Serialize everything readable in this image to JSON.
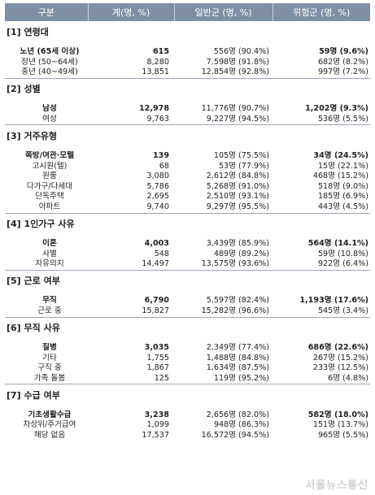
{
  "header": [
    "구분",
    "계(명, %)",
    "일반군 (명, %)",
    "위험군 (명, %)"
  ],
  "sections": [
    {
      "title": "[1] 연령대",
      "rows": [
        {
          "label": "노년 (65세 이상)",
          "total": "615",
          "general": "556명 (90.4%)",
          "risk": "59명 (9.6%)",
          "bold": true
        },
        {
          "label": "장년 (50~64세)",
          "total": "8,280",
          "general": "7,598명 (91.8%)",
          "risk": "682명 (8.2%)",
          "bold": false
        },
        {
          "label": "중년 (40~49세)",
          "total": "13,851",
          "general": "12,854명 (92.8%)",
          "risk": "997명 (7.2%)",
          "bold": false
        }
      ]
    },
    {
      "title": "[2] 성별",
      "rows": [
        {
          "label": "남성",
          "total": "12,978",
          "general": "11,776명 (90.7%)",
          "risk": "1,202명 (9.3%)",
          "bold": true
        },
        {
          "label": "여성",
          "total": "9,763",
          "general": "9,227명 (94.5%)",
          "risk": "536명 (5.5%)",
          "bold": false
        }
      ]
    },
    {
      "title": "[3] 거주유형",
      "rows": [
        {
          "label": "쪽방/여관·모텔",
          "total": "139",
          "general": "105명 (75.5%)",
          "risk": "34명 (24.5%)",
          "bold": true
        },
        {
          "label": "고시원(텔)",
          "total": "68",
          "general": "53명 (77.9%)",
          "risk": "15명 (22.1%)",
          "bold": false
        },
        {
          "label": "원룸",
          "total": "3,080",
          "general": "2,612명 (84.8%)",
          "risk": "468명 (15.2%)",
          "bold": false
        },
        {
          "label": "다가구/다세대",
          "total": "5,786",
          "general": "5,268명 (91.0%)",
          "risk": "518명 (9.0%)",
          "bold": false
        },
        {
          "label": "단독주택",
          "total": "2,695",
          "general": "2,510명 (93.1%)",
          "risk": "185명 (6.9%)",
          "bold": false
        },
        {
          "label": "아파트",
          "total": "9,740",
          "general": "9,297명 (95.5%)",
          "risk": "443명 (4.5%)",
          "bold": false
        }
      ]
    },
    {
      "title": "[4] 1인가구 사유",
      "rows": [
        {
          "label": "이혼",
          "total": "4,003",
          "general": "3,439명 (85.9%)",
          "risk": "564명 (14.1%)",
          "bold": true
        },
        {
          "label": "사별",
          "total": "548",
          "general": "489명 (89.2%)",
          "risk": "59명 (10.8%)",
          "bold": false
        },
        {
          "label": "자유의지",
          "total": "14,497",
          "general": "13,575명 (93.6%)",
          "risk": "922명 (6.4%)",
          "bold": false
        }
      ]
    },
    {
      "title": "[5] 근로 여부",
      "rows": [
        {
          "label": "무직",
          "total": "6,790",
          "general": "5,597명 (82.4%)",
          "risk": "1,193명 (17.6%)",
          "bold": true
        },
        {
          "label": "근로 중",
          "total": "15,827",
          "general": "15,282명 (96.6%)",
          "risk": "545명 (3.4%)",
          "bold": false
        }
      ]
    },
    {
      "title": "[6] 무직 사유",
      "rows": [
        {
          "label": "질병",
          "total": "3,035",
          "general": "2,349명 (77.4%)",
          "risk": "686명 (22.6%)",
          "bold": true
        },
        {
          "label": "기타",
          "total": "1,755",
          "general": "1,488명 (84.8%)",
          "risk": "267명 (15.2%)",
          "bold": false
        },
        {
          "label": "구직 중",
          "total": "1,867",
          "general": "1,634명 (87.5%)",
          "risk": "233명 (12.5%)",
          "bold": false
        },
        {
          "label": "가족 돌봄",
          "total": "125",
          "general": "119명 (95.2%)",
          "risk": "6명 (4.8%)",
          "bold": false
        }
      ]
    },
    {
      "title": "[7] 수급 여부",
      "rows": [
        {
          "label": "기초생활수급",
          "total": "3,238",
          "general": "2,656명 (82.0%)",
          "risk": "582명 (18.0%)",
          "bold": true
        },
        {
          "label": "차상위/주거급여",
          "total": "1,099",
          "general": "948명 (86.3%)",
          "risk": "151명 (13.7%)",
          "bold": false
        },
        {
          "label": "해당 없음",
          "total": "17,537",
          "general": "16,572명 (94.5%)",
          "risk": "965명 (5.5%)",
          "bold": false
        }
      ]
    }
  ],
  "watermark": "서울뉴스통신"
}
